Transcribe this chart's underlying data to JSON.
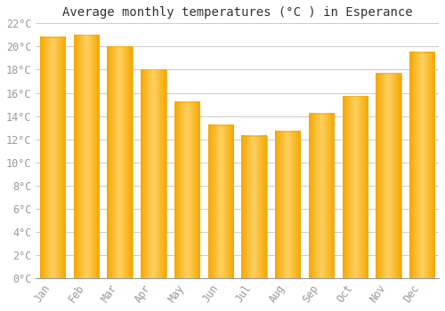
{
  "title": "Average monthly temperatures (°C ) in Esperance",
  "months": [
    "Jan",
    "Feb",
    "Mar",
    "Apr",
    "May",
    "Jun",
    "Jul",
    "Aug",
    "Sep",
    "Oct",
    "Nov",
    "Dec"
  ],
  "values": [
    20.8,
    21.0,
    20.0,
    18.0,
    15.2,
    13.2,
    12.3,
    12.7,
    14.2,
    15.7,
    17.7,
    19.5
  ],
  "bar_color_left": "#F5A800",
  "bar_color_center": "#FFD060",
  "bar_color_right": "#F5A800",
  "ylim": [
    0,
    22
  ],
  "ytick_step": 2,
  "background_color": "#FFFFFF",
  "grid_color": "#CCCCCC",
  "title_fontsize": 10,
  "tick_fontsize": 8.5,
  "tick_color": "#999999",
  "font_family": "monospace"
}
